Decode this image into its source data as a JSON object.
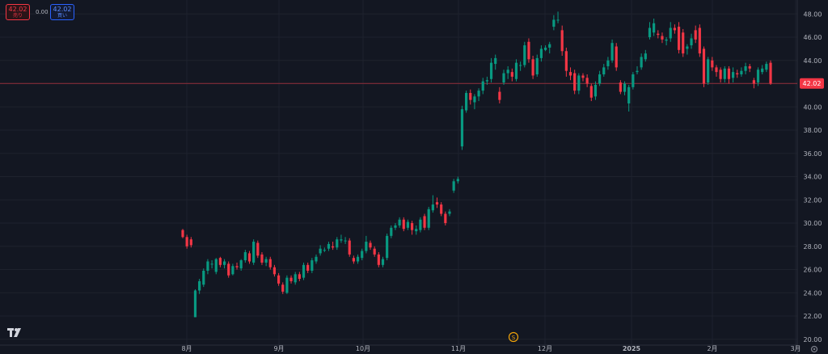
{
  "trade_panel": {
    "sell_price": "42.02",
    "sell_label": "売り",
    "spread": "0.00",
    "buy_price": "42.02",
    "buy_label": "買い"
  },
  "icons": {
    "logo": "tradingview-logo-icon",
    "event": "dividend-marker-icon",
    "settings": "settings-gear-icon"
  },
  "colors": {
    "up": "#089981",
    "down": "#f23645",
    "background": "#131722",
    "grid": "#1e222d",
    "text": "#b2b5be"
  },
  "chart_data": {
    "type": "candlestick",
    "ylim": [
      19.5,
      49.2
    ],
    "y_ticks": [
      20,
      22,
      24,
      26,
      28,
      30,
      32,
      34,
      36,
      38,
      40,
      42,
      44,
      46,
      48
    ],
    "y_tick_labels": [
      "20.00",
      "22.00",
      "24.00",
      "26.00",
      "28.00",
      "30.00",
      "32.00",
      "34.00",
      "36.00",
      "38.00",
      "40.00",
      "42.00",
      "44.00",
      "46.00",
      "48.00"
    ],
    "x_ticks": [
      "8月",
      "9月",
      "10月",
      "11月",
      "12月",
      "2025",
      "2月",
      "3月"
    ],
    "last_price": 42.02,
    "last_price_label": "42.02",
    "event_marker": "S",
    "candles": [
      [
        29.4,
        28.8,
        29.5,
        28.7
      ],
      [
        28.8,
        28.0,
        29.0,
        27.8
      ],
      [
        28.6,
        28.1,
        28.8,
        27.9
      ],
      [
        21.9,
        24.2,
        24.3,
        21.9
      ],
      [
        24.2,
        25.0,
        25.2,
        23.9
      ],
      [
        24.7,
        25.9,
        26.1,
        24.5
      ],
      [
        25.9,
        26.7,
        26.9,
        25.6
      ],
      [
        26.5,
        26.5,
        26.8,
        26.1
      ],
      [
        25.8,
        26.9,
        27.0,
        25.6
      ],
      [
        27.0,
        26.4,
        27.1,
        26.2
      ],
      [
        26.4,
        26.7,
        26.9,
        26.1
      ],
      [
        26.5,
        25.5,
        26.7,
        25.3
      ],
      [
        25.6,
        26.3,
        26.5,
        25.5
      ],
      [
        26.3,
        26.2,
        26.6,
        26.0
      ],
      [
        26.1,
        26.8,
        26.9,
        25.9
      ],
      [
        26.8,
        27.5,
        27.7,
        26.6
      ],
      [
        27.4,
        26.7,
        27.6,
        26.5
      ],
      [
        26.6,
        28.4,
        28.6,
        26.4
      ],
      [
        28.3,
        27.2,
        28.5,
        27.0
      ],
      [
        27.3,
        26.6,
        27.5,
        26.4
      ],
      [
        26.6,
        26.9,
        27.1,
        26.3
      ],
      [
        26.9,
        26.2,
        27.1,
        26.0
      ],
      [
        26.2,
        25.6,
        26.4,
        25.4
      ],
      [
        25.5,
        24.8,
        25.7,
        24.6
      ],
      [
        24.7,
        24.1,
        24.9,
        23.9
      ],
      [
        24.0,
        25.3,
        25.5,
        23.9
      ],
      [
        25.3,
        25.0,
        25.5,
        24.8
      ],
      [
        24.9,
        25.6,
        25.8,
        24.7
      ],
      [
        25.6,
        25.2,
        25.8,
        25.0
      ],
      [
        25.3,
        26.4,
        26.6,
        25.1
      ],
      [
        26.4,
        25.9,
        26.6,
        25.7
      ],
      [
        25.9,
        26.8,
        27.0,
        25.7
      ],
      [
        26.7,
        27.1,
        27.3,
        26.5
      ],
      [
        27.4,
        27.8,
        28.1,
        27.2
      ],
      [
        27.7,
        27.7,
        27.9,
        27.5
      ],
      [
        27.8,
        28.2,
        28.4,
        27.6
      ],
      [
        28.0,
        27.9,
        28.4,
        27.7
      ],
      [
        27.9,
        28.6,
        28.8,
        27.7
      ],
      [
        28.5,
        28.6,
        29.0,
        28.3
      ],
      [
        28.5,
        28.5,
        28.8,
        28.2
      ],
      [
        28.5,
        27.3,
        28.7,
        27.1
      ],
      [
        27.0,
        26.7,
        27.2,
        26.5
      ],
      [
        26.7,
        27.1,
        27.3,
        26.5
      ],
      [
        27.0,
        27.6,
        27.8,
        26.8
      ],
      [
        27.6,
        28.4,
        28.9,
        27.4
      ],
      [
        28.3,
        27.9,
        28.5,
        27.7
      ],
      [
        27.8,
        27.3,
        28.0,
        27.1
      ],
      [
        27.3,
        26.4,
        27.5,
        26.2
      ],
      [
        26.4,
        26.9,
        27.1,
        26.2
      ],
      [
        27.0,
        28.9,
        29.1,
        26.8
      ],
      [
        28.9,
        29.6,
        29.8,
        28.7
      ],
      [
        29.6,
        29.8,
        30.0,
        29.4
      ],
      [
        29.8,
        30.3,
        30.5,
        29.6
      ],
      [
        30.3,
        29.5,
        30.5,
        29.3
      ],
      [
        29.6,
        30.1,
        30.3,
        29.4
      ],
      [
        30.0,
        29.4,
        30.2,
        29.0
      ],
      [
        29.3,
        29.5,
        29.8,
        29.0
      ],
      [
        29.4,
        30.3,
        30.5,
        29.2
      ],
      [
        30.6,
        29.6,
        30.8,
        29.4
      ],
      [
        29.6,
        31.2,
        31.4,
        29.4
      ],
      [
        31.1,
        31.6,
        32.4,
        30.9
      ],
      [
        31.8,
        31.6,
        32.2,
        31.3
      ],
      [
        31.6,
        30.8,
        31.8,
        30.6
      ],
      [
        30.8,
        30.0,
        31.0,
        29.8
      ],
      [
        30.8,
        31.0,
        31.2,
        30.6
      ],
      [
        32.8,
        33.6,
        33.8,
        32.6
      ],
      [
        33.6,
        33.8,
        34.0,
        33.4
      ],
      [
        36.6,
        39.8,
        40.1,
        36.3
      ],
      [
        39.7,
        41.2,
        41.4,
        39.5
      ],
      [
        41.2,
        40.6,
        41.5,
        40.2
      ],
      [
        40.4,
        40.9,
        41.1,
        39.8
      ],
      [
        40.9,
        41.4,
        41.6,
        40.5
      ],
      [
        41.4,
        42.2,
        42.5,
        41.1
      ],
      [
        42.2,
        42.3,
        42.6,
        41.9
      ],
      [
        42.4,
        43.8,
        44.2,
        42.1
      ],
      [
        43.7,
        44.2,
        44.5,
        43.2
      ],
      [
        41.3,
        40.6,
        41.7,
        40.3
      ],
      [
        42.1,
        42.9,
        43.2,
        41.9
      ],
      [
        42.9,
        43.2,
        43.5,
        42.4
      ],
      [
        43.0,
        42.6,
        43.3,
        42.2
      ],
      [
        42.4,
        43.8,
        44.1,
        42.2
      ],
      [
        43.6,
        43.6,
        43.9,
        43.1
      ],
      [
        43.6,
        45.3,
        45.6,
        43.4
      ],
      [
        45.6,
        44.1,
        45.9,
        43.8
      ],
      [
        44.1,
        42.7,
        44.4,
        42.4
      ],
      [
        42.8,
        44.2,
        44.5,
        42.6
      ],
      [
        44.2,
        45.0,
        45.3,
        43.9
      ],
      [
        44.9,
        45.1,
        45.3,
        44.8
      ],
      [
        45.1,
        45.4,
        45.6,
        44.6
      ],
      [
        46.9,
        47.5,
        47.9,
        46.6
      ],
      [
        47.5,
        47.5,
        48.2,
        47.2
      ],
      [
        46.6,
        44.8,
        47.0,
        44.4
      ],
      [
        44.8,
        43.1,
        45.1,
        42.6
      ],
      [
        43.0,
        42.7,
        43.4,
        42.3
      ],
      [
        42.9,
        41.4,
        43.2,
        41.1
      ],
      [
        41.4,
        42.7,
        42.9,
        41.1
      ],
      [
        42.7,
        42.5,
        42.9,
        42.2
      ],
      [
        42.5,
        42.0,
        42.8,
        41.7
      ],
      [
        41.8,
        40.8,
        42.0,
        40.5
      ],
      [
        40.9,
        41.9,
        42.2,
        40.6
      ],
      [
        42.0,
        42.8,
        43.1,
        41.8
      ],
      [
        42.8,
        43.4,
        43.7,
        42.6
      ],
      [
        43.5,
        44.0,
        44.3,
        43.2
      ],
      [
        44.0,
        45.5,
        45.8,
        43.8
      ],
      [
        45.2,
        43.4,
        45.5,
        43.1
      ],
      [
        42.1,
        41.3,
        42.3,
        41.1
      ],
      [
        41.3,
        42.0,
        42.2,
        41.0
      ],
      [
        40.3,
        41.7,
        41.9,
        39.6
      ],
      [
        41.7,
        42.8,
        43.0,
        41.5
      ],
      [
        43.0,
        43.1,
        43.5,
        42.8
      ],
      [
        43.4,
        44.3,
        44.6,
        43.2
      ],
      [
        44.1,
        44.6,
        44.9,
        43.9
      ],
      [
        46.0,
        46.8,
        47.3,
        45.8
      ],
      [
        46.4,
        47.2,
        47.6,
        46.1
      ],
      [
        46.3,
        46.2,
        46.6,
        45.9
      ],
      [
        46.1,
        45.8,
        46.4,
        45.5
      ],
      [
        45.7,
        45.8,
        46.0,
        45.3
      ],
      [
        45.9,
        46.8,
        47.3,
        45.6
      ],
      [
        46.8,
        46.6,
        47.1,
        46.3
      ],
      [
        46.9,
        44.9,
        47.3,
        44.6
      ],
      [
        46.4,
        44.6,
        46.7,
        44.3
      ],
      [
        45.0,
        45.2,
        45.4,
        44.5
      ],
      [
        45.3,
        45.9,
        46.3,
        45.0
      ],
      [
        46.6,
        45.8,
        47.0,
        45.5
      ],
      [
        46.8,
        44.6,
        47.1,
        44.3
      ],
      [
        45.0,
        42.0,
        45.2,
        41.7
      ],
      [
        42.1,
        44.1,
        44.3,
        41.9
      ],
      [
        44.0,
        43.4,
        44.3,
        43.1
      ],
      [
        43.4,
        43.0,
        43.6,
        42.6
      ],
      [
        43.2,
        42.4,
        43.4,
        42.1
      ],
      [
        42.4,
        43.3,
        43.5,
        42.1
      ],
      [
        43.3,
        42.4,
        43.5,
        42.0
      ],
      [
        42.5,
        43.0,
        43.4,
        42.1
      ],
      [
        42.9,
        42.8,
        43.2,
        42.5
      ],
      [
        42.8,
        43.1,
        43.4,
        42.6
      ],
      [
        43.1,
        43.5,
        43.8,
        42.8
      ],
      [
        43.5,
        43.3,
        43.7,
        43.0
      ],
      [
        42.3,
        42.0,
        42.5,
        41.6
      ],
      [
        42.1,
        43.2,
        43.4,
        41.8
      ],
      [
        43.0,
        43.3,
        43.6,
        42.8
      ],
      [
        43.2,
        43.7,
        43.9,
        43.0
      ],
      [
        43.8,
        42.0,
        44.0,
        41.9
      ]
    ]
  }
}
